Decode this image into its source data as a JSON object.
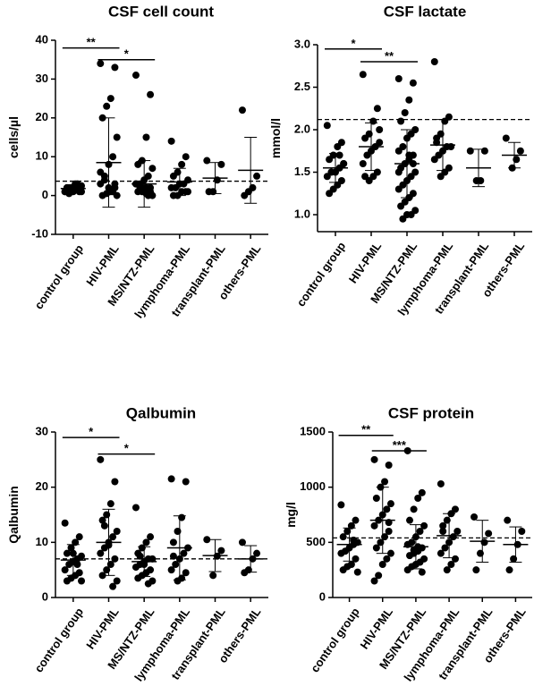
{
  "chart_data": [
    {
      "type": "dot",
      "title": "CSF cell count",
      "ylabel": "cells/µl",
      "categories": [
        "control group",
        "HIV-PML",
        "MS/NTZ-PML",
        "lymphoma-PML",
        "transplant-PML",
        "others-PML"
      ],
      "ylim": [
        -10,
        40
      ],
      "yticks": [
        -10,
        0,
        10,
        20,
        30,
        40
      ],
      "ref_line": 3.7,
      "groups": [
        {
          "values": [
            1,
            1,
            1.5,
            2,
            2,
            2.5,
            3,
            1,
            0.5,
            1,
            2,
            3,
            1.5,
            2,
            1
          ],
          "mean": 1.8,
          "sd": 1
        },
        {
          "values": [
            34,
            33,
            25,
            23,
            20,
            15,
            10,
            8,
            5,
            3,
            2,
            1,
            0.5,
            0,
            0,
            1,
            2,
            4,
            6,
            3
          ],
          "mean": 8.5,
          "sd": 11.5
        },
        {
          "values": [
            31,
            26,
            15,
            9,
            8,
            7,
            5,
            4,
            3,
            3,
            2,
            2,
            1,
            1,
            0,
            0,
            1,
            2,
            3,
            1,
            0.5,
            2
          ],
          "mean": 3,
          "sd": 6
        },
        {
          "values": [
            14,
            10,
            8,
            6,
            5,
            4,
            3,
            3,
            2,
            2,
            1,
            1,
            0,
            0,
            1
          ],
          "mean": 3.5,
          "sd": 3.5
        },
        {
          "values": [
            9,
            8,
            4,
            1,
            1
          ],
          "mean": 4.5,
          "sd": 4
        },
        {
          "values": [
            22,
            5,
            2,
            1,
            0
          ],
          "mean": 6.5,
          "sd": 8.5
        }
      ],
      "significance": [
        {
          "from": 0,
          "to": 1,
          "label": "**",
          "y": 38
        },
        {
          "from": 1,
          "to": 2,
          "label": "*",
          "y": 35
        }
      ]
    },
    {
      "type": "dot",
      "title": "CSF lactate",
      "ylabel": "mmol/l",
      "categories": [
        "control group",
        "HIV-PML",
        "MS/NTZ-PML",
        "lymphoma-PML",
        "transplant-PML",
        "others-PML"
      ],
      "ylim": [
        0.8,
        3.0
      ],
      "yticks": [
        {
          "value": 1,
          "label": "1.0"
        },
        1.5,
        {
          "value": 2,
          "label": "2.0"
        },
        2.5,
        {
          "value": 3,
          "label": "3.0"
        }
      ],
      "ref_line": 2.12,
      "groups": [
        {
          "values": [
            2.05,
            1.85,
            1.8,
            1.7,
            1.65,
            1.6,
            1.55,
            1.5,
            1.5,
            1.45,
            1.4,
            1.35,
            1.3,
            1.25,
            1.6,
            1.7
          ],
          "mean": 1.55,
          "sd": 0.17
        },
        {
          "values": [
            2.65,
            2.25,
            2.1,
            1.95,
            1.9,
            1.85,
            1.8,
            1.75,
            1.7,
            1.6,
            1.5,
            1.45,
            1.4,
            1.45,
            2.0
          ],
          "mean": 1.8,
          "sd": 0.28
        },
        {
          "values": [
            2.6,
            2.55,
            2.35,
            2.2,
            2.1,
            2.0,
            1.95,
            1.9,
            1.8,
            1.75,
            1.7,
            1.65,
            1.6,
            1.55,
            1.5,
            1.45,
            1.4,
            1.35,
            1.3,
            1.25,
            1.2,
            1.15,
            1.1,
            1.05,
            1.0,
            1.0,
            0.95,
            1.5,
            1.6,
            1.7
          ],
          "mean": 1.6,
          "sd": 0.4
        },
        {
          "values": [
            2.8,
            2.15,
            2.1,
            1.95,
            1.85,
            1.8,
            1.8,
            1.75,
            1.7,
            1.65,
            1.55,
            1.5,
            1.45,
            1.9
          ],
          "mean": 1.82,
          "sd": 0.3
        },
        {
          "values": [
            1.75,
            1.75,
            1.4,
            1.4
          ],
          "mean": 1.55,
          "sd": 0.22
        },
        {
          "values": [
            1.9,
            1.75,
            1.65,
            1.55
          ],
          "mean": 1.7,
          "sd": 0.15
        }
      ],
      "significance": [
        {
          "from": 0,
          "to": 1,
          "label": "*",
          "y": 2.95
        },
        {
          "from": 1,
          "to": 2,
          "label": "**",
          "y": 2.8
        }
      ]
    },
    {
      "type": "dot",
      "title": "Qalbumin",
      "ylabel": "Qalbumin",
      "categories": [
        "control group",
        "HIV-PML",
        "MS/NTZ-PML",
        "lymphoma-PML",
        "transplant-PML",
        "others-PML"
      ],
      "ylim": [
        0,
        30
      ],
      "yticks": [
        0,
        10,
        20,
        30
      ],
      "ref_line": 7,
      "groups": [
        {
          "values": [
            13.5,
            11,
            10,
            9,
            8,
            7.5,
            7,
            6.5,
            6,
            5,
            4.5,
            4,
            3.5,
            3,
            3,
            6,
            8
          ],
          "mean": 6.8,
          "sd": 2.8
        },
        {
          "values": [
            25,
            21,
            17,
            15,
            14,
            12,
            11,
            10,
            9,
            8,
            7,
            6,
            5,
            4,
            3,
            2,
            9.5,
            13
          ],
          "mean": 10,
          "sd": 6
        },
        {
          "values": [
            16.3,
            11,
            10,
            9,
            8,
            7,
            7,
            6.5,
            6,
            5.5,
            5,
            4.5,
            4,
            3.5,
            3,
            2.5,
            6,
            7.5
          ],
          "mean": 6.5,
          "sd": 2.7
        },
        {
          "values": [
            21.5,
            21,
            14.5,
            12,
            10,
            9,
            8,
            7,
            6,
            5,
            4.5,
            3.5,
            3,
            7.5
          ],
          "mean": 9,
          "sd": 5.8
        },
        {
          "values": [
            10.5,
            8.5,
            7.5,
            4
          ],
          "mean": 7.6,
          "sd": 2.9
        },
        {
          "values": [
            10,
            8,
            7,
            5,
            4.5
          ],
          "mean": 7,
          "sd": 2.4
        }
      ],
      "significance": [
        {
          "from": 0,
          "to": 1,
          "label": "*",
          "y": 29
        },
        {
          "from": 1,
          "to": 2,
          "label": "*",
          "y": 26
        }
      ]
    },
    {
      "type": "dot",
      "title": "CSF protein",
      "ylabel": "mg/l",
      "categories": [
        "control group",
        "HIV-PML",
        "MS/NTZ-PML",
        "lymphoma-PML",
        "transplant-PML",
        "others-PML"
      ],
      "ylim": [
        0,
        1500
      ],
      "yticks": [
        0,
        500,
        1000,
        1500
      ],
      "ref_line": 540,
      "groups": [
        {
          "values": [
            840,
            700,
            650,
            600,
            550,
            500,
            480,
            450,
            420,
            400,
            350,
            300,
            280,
            250,
            230,
            520
          ],
          "mean": 480,
          "sd": 150
        },
        {
          "values": [
            1250,
            1200,
            1050,
            1000,
            900,
            850,
            800,
            750,
            700,
            650,
            600,
            550,
            500,
            450,
            400,
            350,
            300,
            200,
            150,
            680
          ],
          "mean": 700,
          "sd": 300
        },
        {
          "values": [
            1330,
            950,
            900,
            800,
            700,
            650,
            600,
            550,
            500,
            480,
            450,
            420,
            400,
            380,
            350,
            320,
            300,
            280,
            250,
            230,
            460,
            430
          ],
          "mean": 460,
          "sd": 200
        },
        {
          "values": [
            1030,
            800,
            760,
            700,
            650,
            600,
            550,
            500,
            450,
            400,
            350,
            300,
            250,
            600
          ],
          "mean": 560,
          "sd": 200
        },
        {
          "values": [
            730,
            580,
            500,
            400,
            250
          ],
          "mean": 510,
          "sd": 190
        },
        {
          "values": [
            700,
            600,
            480,
            350,
            250
          ],
          "mean": 480,
          "sd": 160
        }
      ],
      "significance": [
        {
          "from": 0,
          "to": 1,
          "label": "**",
          "y": 1470
        },
        {
          "from": 1,
          "to": 2,
          "label": "***",
          "y": 1330
        }
      ]
    }
  ]
}
